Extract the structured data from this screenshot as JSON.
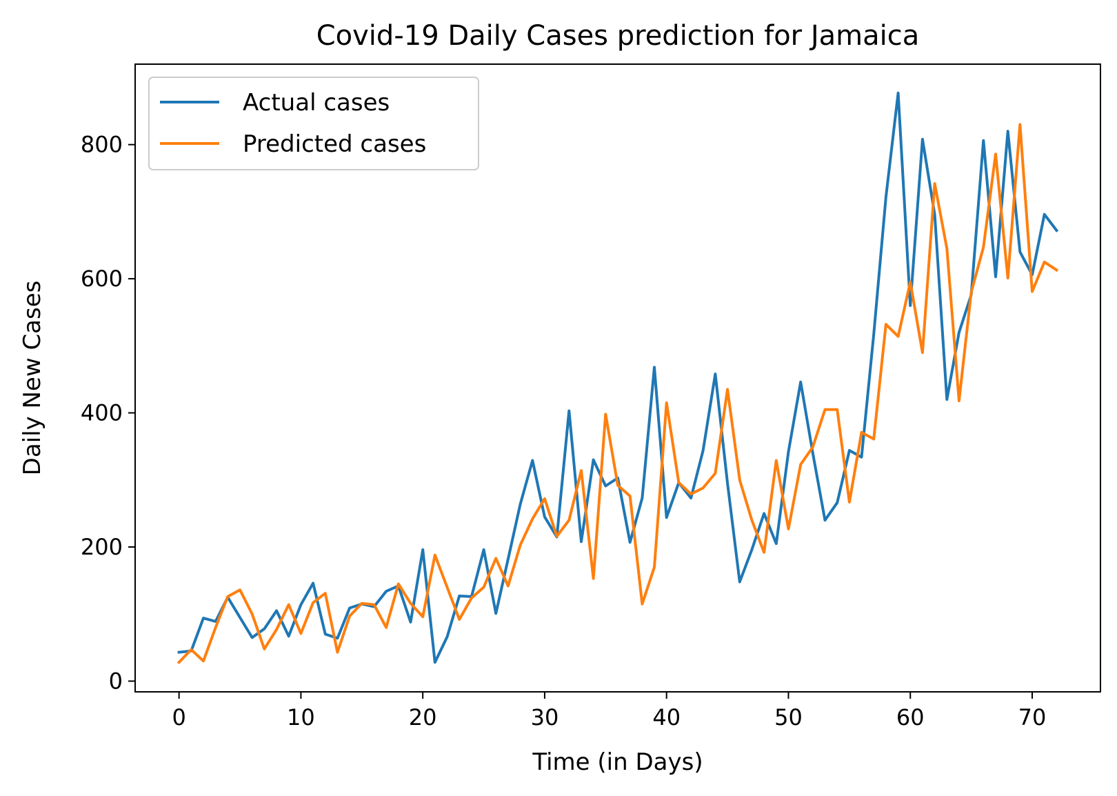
{
  "chart_data": {
    "type": "line",
    "title": "Covid-19 Daily Cases prediction for Jamaica",
    "xlabel": "Time (in Days)",
    "ylabel": "Daily New Cases",
    "xlim": [
      -3.6,
      75.6
    ],
    "ylim": [
      -16,
      920
    ],
    "xticks": [
      0,
      10,
      20,
      30,
      40,
      50,
      60,
      70
    ],
    "yticks": [
      0,
      200,
      400,
      600,
      800
    ],
    "grid": false,
    "legend_position": "top-left",
    "x": [
      0,
      1,
      2,
      3,
      4,
      5,
      6,
      7,
      8,
      9,
      10,
      11,
      12,
      13,
      14,
      15,
      16,
      17,
      18,
      19,
      20,
      21,
      22,
      23,
      24,
      25,
      26,
      27,
      28,
      29,
      30,
      31,
      32,
      33,
      34,
      35,
      36,
      37,
      38,
      39,
      40,
      41,
      42,
      43,
      44,
      45,
      46,
      47,
      48,
      49,
      50,
      51,
      52,
      53,
      54,
      55,
      56,
      57,
      58,
      59,
      60,
      61,
      62,
      63,
      64,
      65,
      66,
      67,
      68,
      69,
      70,
      71,
      72
    ],
    "series": [
      {
        "name": "Actual cases",
        "color": "#1f77b4",
        "values": [
          43,
          45,
          94,
          89,
          125,
          95,
          65,
          78,
          105,
          67,
          114,
          146,
          70,
          64,
          109,
          115,
          111,
          134,
          142,
          88,
          196,
          28,
          66,
          127,
          126,
          196,
          101,
          182,
          264,
          329,
          245,
          215,
          403,
          208,
          330,
          291,
          303,
          207,
          273,
          468,
          244,
          296,
          273,
          344,
          458,
          295,
          148,
          196,
          250,
          205,
          342,
          446,
          340,
          240,
          266,
          344,
          334,
          517,
          722,
          877,
          560,
          808,
          696,
          420,
          520,
          576,
          806,
          603,
          820,
          640,
          606,
          696,
          672
        ]
      },
      {
        "name": "Predicted cases",
        "color": "#ff7f0e",
        "values": [
          28,
          47,
          30,
          80,
          126,
          136,
          100,
          48,
          77,
          114,
          71,
          117,
          131,
          43,
          97,
          116,
          114,
          80,
          145,
          116,
          96,
          188,
          140,
          92,
          124,
          140,
          183,
          142,
          203,
          242,
          272,
          216,
          240,
          314,
          153,
          398,
          292,
          276,
          115,
          170,
          415,
          296,
          279,
          288,
          310,
          435,
          300,
          240,
          192,
          329,
          227,
          323,
          349,
          405,
          405,
          267,
          371,
          361,
          532,
          514,
          595,
          490,
          742,
          645,
          418,
          580,
          647,
          786,
          601,
          830,
          581,
          625,
          613
        ]
      }
    ]
  }
}
